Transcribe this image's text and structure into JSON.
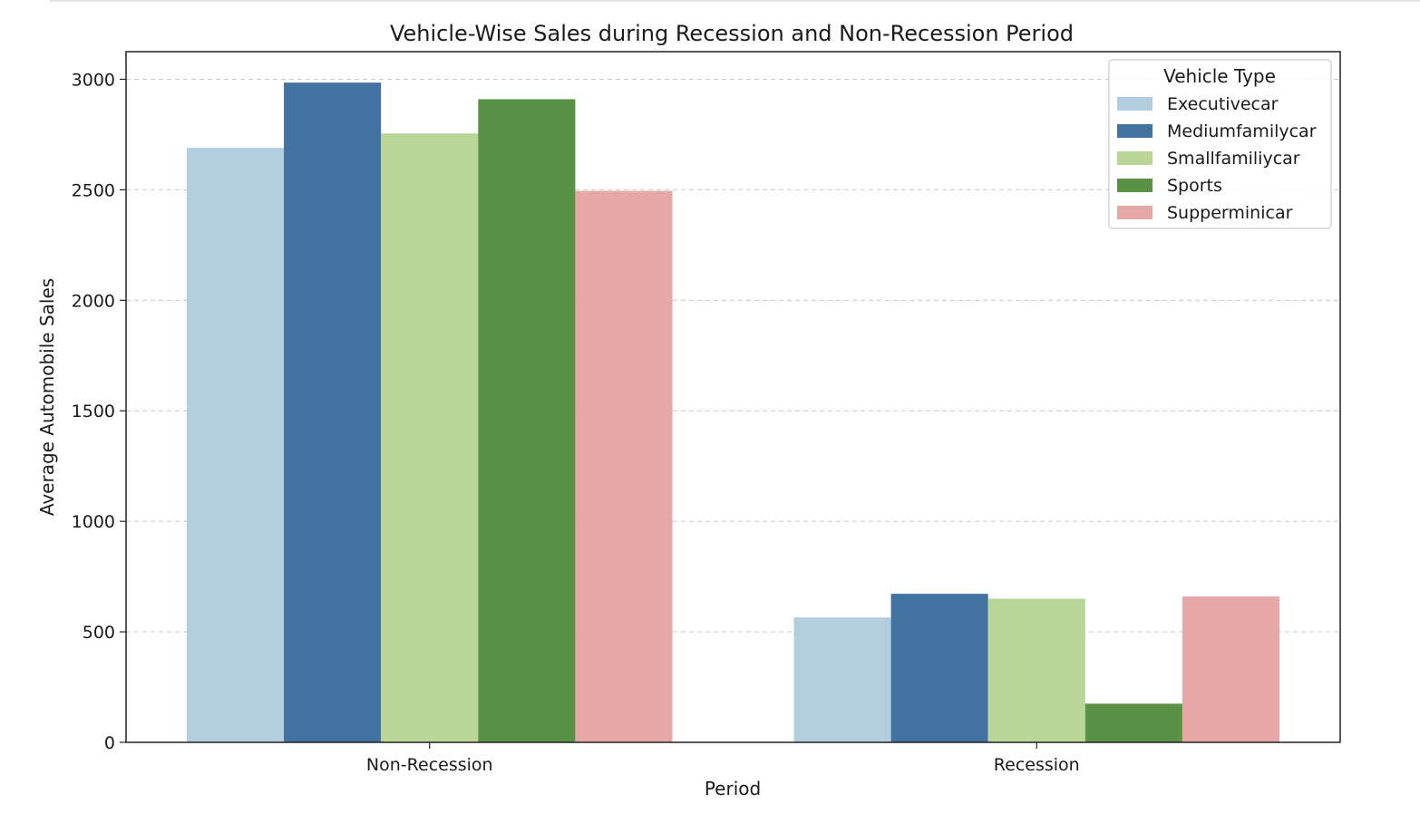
{
  "chart_data": {
    "type": "bar",
    "title": "Vehicle-Wise Sales during Recession and Non-Recession Period",
    "xlabel": "Period",
    "ylabel": "Average Automobile Sales",
    "categories": [
      "Non-Recession",
      "Recession"
    ],
    "ylim": [
      0,
      3125
    ],
    "yticks": [
      "0",
      "500",
      "1000",
      "1500",
      "2000",
      "2500",
      "3000"
    ],
    "grid": "y-dashed",
    "legend": {
      "title": "Vehicle Type",
      "placement": "top-right"
    },
    "series": [
      {
        "name": "Executivecar",
        "color": "#b3cde0",
        "values": [
          2690,
          565
        ]
      },
      {
        "name": "Mediumfamilycar",
        "color": "#4273a0",
        "values": [
          2985,
          672
        ]
      },
      {
        "name": "Smallfamiliycar",
        "color": "#b9d597",
        "values": [
          2755,
          650
        ]
      },
      {
        "name": "Sports",
        "color": "#5a9245",
        "values": [
          2910,
          175
        ]
      },
      {
        "name": "Supperminicar",
        "color": "#e5a8a7",
        "values": [
          2495,
          660
        ]
      }
    ]
  }
}
